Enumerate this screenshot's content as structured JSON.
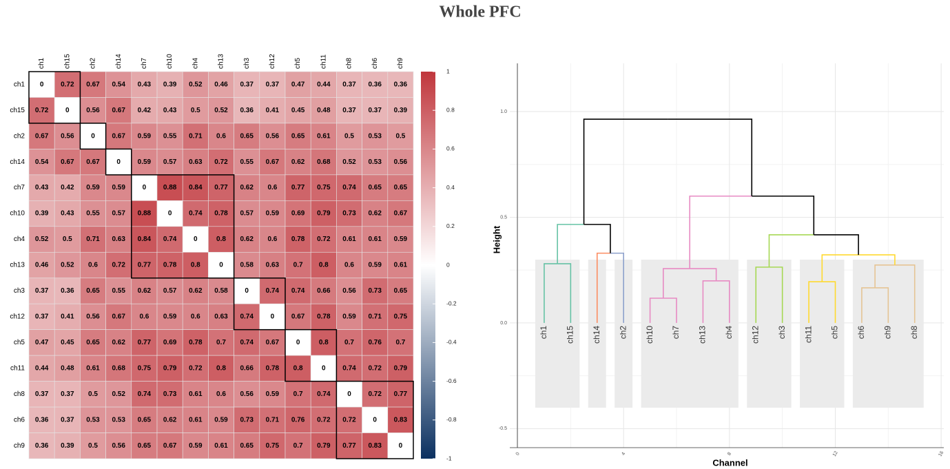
{
  "title": "Whole PFC",
  "chart_data": [
    {
      "type": "heatmap",
      "columns": [
        "ch1",
        "ch15",
        "ch2",
        "ch14",
        "ch7",
        "ch10",
        "ch4",
        "ch13",
        "ch3",
        "ch12",
        "ch5",
        "ch11",
        "ch8",
        "ch6",
        "ch9"
      ],
      "rows": [
        "ch1",
        "ch15",
        "ch2",
        "ch14",
        "ch7",
        "ch10",
        "ch4",
        "ch13",
        "ch3",
        "ch12",
        "ch5",
        "ch11",
        "ch8",
        "ch6",
        "ch9"
      ],
      "values": [
        [
          0,
          0.72,
          0.67,
          0.54,
          0.43,
          0.39,
          0.52,
          0.46,
          0.37,
          0.37,
          0.47,
          0.44,
          0.37,
          0.36,
          0.36
        ],
        [
          0.72,
          0,
          0.56,
          0.67,
          0.42,
          0.43,
          0.5,
          0.52,
          0.36,
          0.41,
          0.45,
          0.48,
          0.37,
          0.37,
          0.39
        ],
        [
          0.67,
          0.56,
          0,
          0.67,
          0.59,
          0.55,
          0.71,
          0.6,
          0.65,
          0.56,
          0.65,
          0.61,
          0.5,
          0.53,
          0.5
        ],
        [
          0.54,
          0.67,
          0.67,
          0,
          0.59,
          0.57,
          0.63,
          0.72,
          0.55,
          0.67,
          0.62,
          0.68,
          0.52,
          0.53,
          0.56
        ],
        [
          0.43,
          0.42,
          0.59,
          0.59,
          0,
          0.88,
          0.84,
          0.77,
          0.62,
          0.6,
          0.77,
          0.75,
          0.74,
          0.65,
          0.65
        ],
        [
          0.39,
          0.43,
          0.55,
          0.57,
          0.88,
          0,
          0.74,
          0.78,
          0.57,
          0.59,
          0.69,
          0.79,
          0.73,
          0.62,
          0.67
        ],
        [
          0.52,
          0.5,
          0.71,
          0.63,
          0.84,
          0.74,
          0,
          0.8,
          0.62,
          0.6,
          0.78,
          0.72,
          0.61,
          0.61,
          0.59
        ],
        [
          0.46,
          0.52,
          0.6,
          0.72,
          0.77,
          0.78,
          0.8,
          0,
          0.58,
          0.63,
          0.7,
          0.8,
          0.6,
          0.59,
          0.61
        ],
        [
          0.37,
          0.36,
          0.65,
          0.55,
          0.62,
          0.57,
          0.62,
          0.58,
          0,
          0.74,
          0.74,
          0.66,
          0.56,
          0.73,
          0.65
        ],
        [
          0.37,
          0.41,
          0.56,
          0.67,
          0.6,
          0.59,
          0.6,
          0.63,
          0.74,
          0,
          0.67,
          0.78,
          0.59,
          0.71,
          0.75
        ],
        [
          0.47,
          0.45,
          0.65,
          0.62,
          0.77,
          0.69,
          0.78,
          0.7,
          0.74,
          0.67,
          0,
          0.8,
          0.7,
          0.76,
          0.7
        ],
        [
          0.44,
          0.48,
          0.61,
          0.68,
          0.75,
          0.79,
          0.72,
          0.8,
          0.66,
          0.78,
          0.8,
          0,
          0.74,
          0.72,
          0.79
        ],
        [
          0.37,
          0.37,
          0.5,
          0.52,
          0.74,
          0.73,
          0.61,
          0.6,
          0.56,
          0.59,
          0.7,
          0.74,
          0,
          0.72,
          0.77
        ],
        [
          0.36,
          0.37,
          0.53,
          0.53,
          0.65,
          0.62,
          0.61,
          0.59,
          0.73,
          0.71,
          0.76,
          0.72,
          0.72,
          0,
          0.83
        ],
        [
          0.36,
          0.39,
          0.5,
          0.56,
          0.65,
          0.67,
          0.59,
          0.61,
          0.65,
          0.75,
          0.7,
          0.79,
          0.77,
          0.83,
          0
        ]
      ],
      "colorscale": [
        "#0b3060",
        "#ffffff",
        "#c0363c"
      ],
      "clim": [
        -1,
        1
      ],
      "colorbar_ticks": [
        1,
        0.8,
        0.6,
        0.4,
        0.2,
        0,
        -0.2,
        -0.4,
        -0.6,
        -0.8,
        -1
      ]
    },
    {
      "type": "dendrogram",
      "xlabel": "Channel",
      "ylabel": "Height",
      "leaves": [
        "ch1",
        "ch15",
        "ch14",
        "ch2",
        "ch10",
        "ch7",
        "ch13",
        "ch4",
        "ch12",
        "ch3",
        "ch11",
        "ch5",
        "ch6",
        "ch9",
        "ch8"
      ],
      "leaf_colors": [
        "#66c2a5",
        "#66c2a5",
        "#fc8d62",
        "#8da0cb",
        "#e78ac3",
        "#e78ac3",
        "#e78ac3",
        "#e78ac3",
        "#a6d854",
        "#a6d854",
        "#ffd92f",
        "#ffd92f",
        "#e5c494",
        "#e5c494",
        "#e5c494"
      ],
      "merges": [
        {
          "children": [
            0,
            1
          ],
          "height": 0.28,
          "color": "#66c2a5"
        },
        {
          "children": [
            2,
            3
          ],
          "height": 0.33,
          "color": "#000000"
        },
        {
          "children": [
            4,
            5
          ],
          "height": 0.117,
          "color": "#e78ac3"
        },
        {
          "children": [
            6,
            7
          ],
          "height": 0.199,
          "color": "#e78ac3"
        },
        {
          "children": [
            17,
            18
          ],
          "height": 0.257,
          "color": "#e78ac3"
        },
        {
          "children": [
            8,
            9
          ],
          "height": 0.264,
          "color": "#a6d854"
        },
        {
          "children": [
            10,
            11
          ],
          "height": 0.195,
          "color": "#ffd92f"
        },
        {
          "children": [
            12,
            13
          ],
          "height": 0.166,
          "color": "#e5c494"
        },
        {
          "children": [
            22,
            14
          ],
          "height": 0.274,
          "color": "#ffd92f"
        },
        {
          "children": [
            21,
            23
          ],
          "height": 0.322,
          "color": "#000000"
        },
        {
          "children": [
            20,
            24
          ],
          "height": 0.417,
          "color": "#000000"
        },
        {
          "children": [
            15,
            16
          ],
          "height": 0.466,
          "color": "#000000"
        },
        {
          "children": [
            19,
            25
          ],
          "height": 0.6,
          "color": "#000000"
        },
        {
          "children": [
            26,
            27
          ],
          "height": 0.964
        }
      ],
      "xlim": [
        -0.3,
        16.1
      ],
      "ylim": [
        -0.59,
        1.228
      ],
      "xticks": [
        0,
        4,
        8,
        12,
        16
      ],
      "yticks": [
        -0.5,
        {
          "value": 0,
          "label": "0.0"
        },
        0.5,
        {
          "value": 1,
          "label": "1.0"
        }
      ],
      "grid": true
    }
  ]
}
